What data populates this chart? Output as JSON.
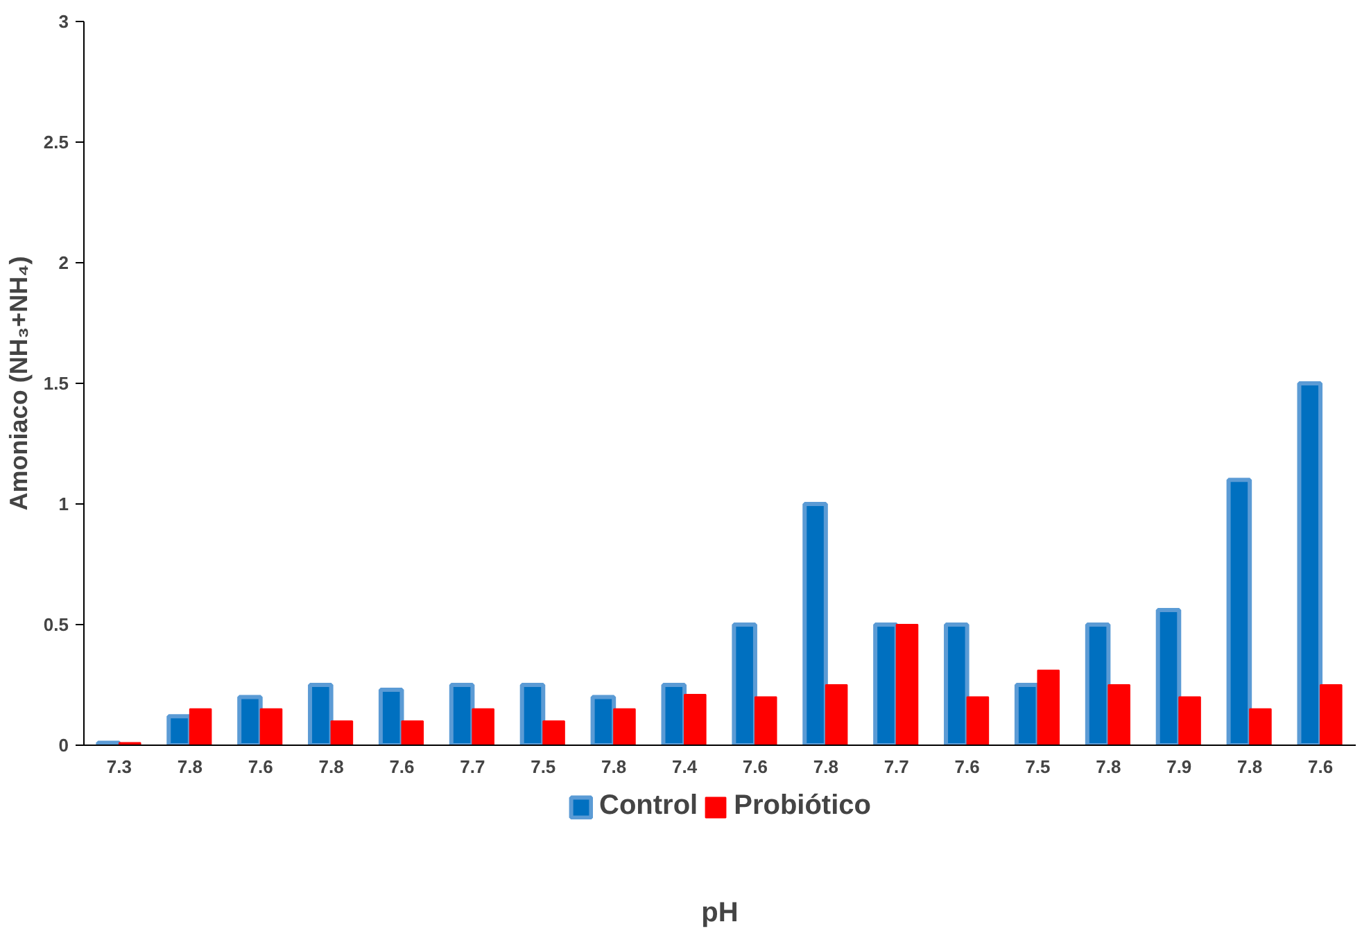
{
  "chart_data": {
    "type": "bar",
    "xlabel": "pH",
    "ylabel": "Amoniaco (NH₃+NH₄)",
    "categories": [
      "7.3",
      "7.8",
      "7.6",
      "7.8",
      "7.6",
      "7.7",
      "7.5",
      "7.8",
      "7.4",
      "7.6",
      "7.8",
      "7.7",
      "7.6",
      "7.5",
      "7.8",
      "7.9",
      "7.8",
      "7.6"
    ],
    "series": [
      {
        "name": "Control",
        "color": "#0070c0",
        "values": [
          0.01,
          0.12,
          0.2,
          0.25,
          0.23,
          0.25,
          0.25,
          0.2,
          0.25,
          0.5,
          1.0,
          0.5,
          0.5,
          0.25,
          0.5,
          0.56,
          1.1,
          1.5
        ]
      },
      {
        "name": "Probiótico",
        "color": "#ff0000",
        "values": [
          0.01,
          0.15,
          0.15,
          0.1,
          0.1,
          0.15,
          0.1,
          0.15,
          0.21,
          0.2,
          0.25,
          0.5,
          0.2,
          0.31,
          0.25,
          0.2,
          0.15,
          0.25
        ]
      }
    ],
    "ylim": [
      0,
      3
    ],
    "yticks": [
      0,
      {
        "value": 0.5,
        "label": "0.5"
      },
      1,
      {
        "value": 1.5,
        "label": "1.5"
      },
      2,
      {
        "value": 2.5,
        "label": "2.5"
      },
      3
    ],
    "grid": false,
    "legend": "bottom"
  }
}
